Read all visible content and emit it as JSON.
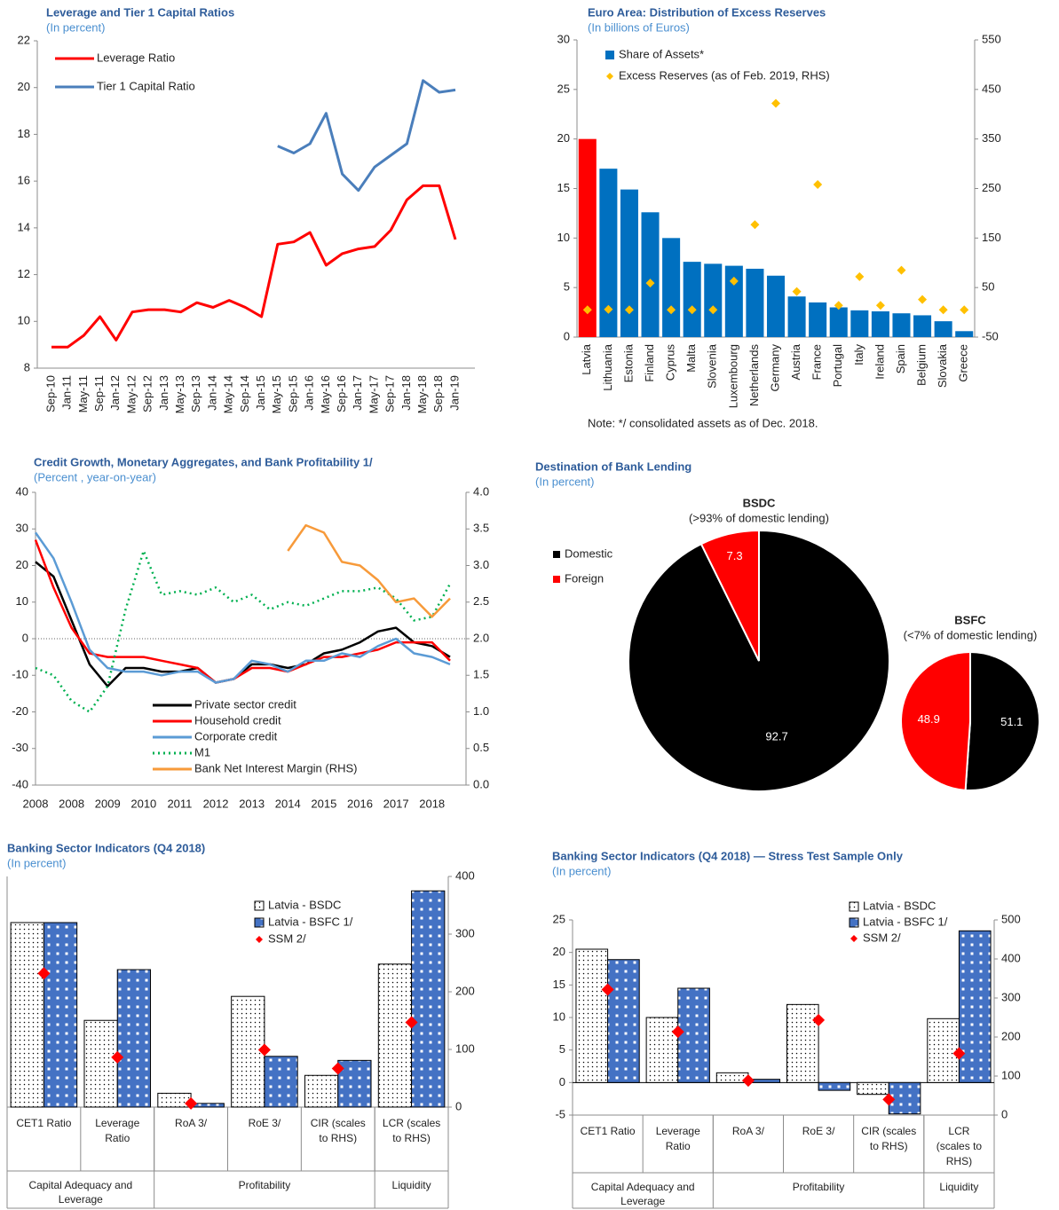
{
  "chart_data": [
    {
      "type": "line",
      "title": "Leverage and Tier 1 Capital Ratios",
      "subtitle": "(In percent)",
      "categories": [
        "Sep-10",
        "Jan-11",
        "May-11",
        "Sep-11",
        "Jan-12",
        "May-12",
        "Sep-12",
        "Jan-13",
        "May-13",
        "Sep-13",
        "Jan-14",
        "May-14",
        "Sep-14",
        "Jan-15",
        "May-15",
        "Sep-15",
        "Jan-16",
        "May-16",
        "Sep-16",
        "Jan-17",
        "May-17",
        "Sep-17",
        "Jan-18",
        "May-18",
        "Sep-18",
        "Jan-19"
      ],
      "series": [
        {
          "name": "Leverage Ratio",
          "color": "#ff0000",
          "values": [
            8.9,
            8.9,
            9.4,
            10.2,
            9.2,
            10.4,
            10.5,
            10.5,
            10.4,
            10.8,
            10.6,
            10.9,
            10.6,
            10.2,
            13.3,
            13.4,
            13.8,
            12.4,
            12.9,
            13.1,
            13.2,
            13.9,
            15.2,
            15.8,
            15.8,
            13.5
          ]
        },
        {
          "name": "Tier 1 Capital Ratio",
          "color": "#4a7ebb",
          "values": [
            null,
            null,
            null,
            null,
            null,
            null,
            null,
            null,
            null,
            null,
            null,
            null,
            null,
            null,
            17.5,
            17.2,
            17.6,
            18.9,
            16.3,
            15.6,
            16.6,
            17.1,
            17.6,
            20.3,
            19.8,
            19.9
          ]
        }
      ],
      "ylim": [
        8,
        22
      ],
      "yticks": [
        8,
        10,
        12,
        14,
        16,
        18,
        20,
        22
      ],
      "legend": "upper left"
    },
    {
      "type": "bar",
      "title": "Euro Area: Distribution of Excess Reserves",
      "subtitle": "(In billions of Euros)",
      "note": "Note: */ consolidated assets as of Dec. 2018.",
      "categories": [
        "Latvia",
        "Lithuania",
        "Estonia",
        "Finland",
        "Cyprus",
        "Malta",
        "Slovenia",
        "Luxembourg",
        "Netherlands",
        "Germany",
        "Austria",
        "France",
        "Portugal",
        "Italy",
        "Ireland",
        "Spain",
        "Belgium",
        "Slovakia",
        "Greece"
      ],
      "series": [
        {
          "name": "Share of Assets*",
          "color": "#0070c0",
          "colors": [
            "#ff0000",
            "#0070c0",
            "#0070c0",
            "#0070c0",
            "#0070c0",
            "#0070c0",
            "#0070c0",
            "#0070c0",
            "#0070c0",
            "#0070c0",
            "#0070c0",
            "#0070c0",
            "#0070c0",
            "#0070c0",
            "#0070c0",
            "#0070c0",
            "#0070c0",
            "#0070c0",
            "#0070c0"
          ],
          "values": [
            20,
            17,
            14.9,
            12.6,
            10,
            7.6,
            7.4,
            7.2,
            6.9,
            6.2,
            4.1,
            3.5,
            3.0,
            2.7,
            2.6,
            2.4,
            2.2,
            1.6,
            0.6
          ]
        },
        {
          "name": "Excess Reserves (as of Feb. 2019, RHS)",
          "type": "scatter",
          "axis": "y2",
          "color": "#ffc000",
          "values": [
            5,
            6,
            5,
            59,
            5,
            5,
            5,
            63,
            177,
            422,
            42,
            258,
            14,
            72,
            14,
            85,
            26,
            5,
            5
          ]
        }
      ],
      "ylim": [
        0,
        30
      ],
      "yticks": [
        0,
        5,
        10,
        15,
        20,
        25,
        30
      ],
      "y2lim": [
        -50,
        550
      ],
      "y2ticks": [
        -50,
        50,
        150,
        250,
        350,
        450,
        550
      ],
      "legend": "upper left"
    },
    {
      "type": "line",
      "title": "Credit Growth, Monetary Aggregates, and Bank Profitability 1/",
      "subtitle": "(Percent , year-on-year)",
      "categories": [
        "2008",
        null,
        "2008",
        null,
        "2009",
        null,
        "2010",
        null,
        "2011",
        null,
        "2012",
        null,
        "2013",
        null,
        "2014",
        null,
        "2015",
        null,
        "2016",
        null,
        "2017",
        null,
        "2018",
        null
      ],
      "series": [
        {
          "name": "Private sector credit",
          "color": "#000000",
          "values": [
            21,
            17,
            5,
            -7,
            -13,
            -8,
            -8,
            -9,
            -9,
            -8,
            -12,
            -11,
            -7,
            -7,
            -8,
            -7,
            -4,
            -3,
            -1,
            2,
            3,
            -1,
            -2,
            -5
          ]
        },
        {
          "name": "Household credit",
          "color": "#ff0000",
          "values": [
            27,
            14,
            3,
            -4,
            -5,
            -5,
            -5,
            -6,
            -7,
            -8,
            -12,
            -11,
            -8,
            -8,
            -9,
            -7,
            -5,
            -5,
            -4,
            -3,
            -1,
            -1,
            -1,
            -6
          ]
        },
        {
          "name": "Corporate credit",
          "color": "#5b9bd5",
          "values": [
            29,
            22,
            10,
            -3,
            -8,
            -9,
            -9,
            -10,
            -9,
            -9,
            -12,
            -11,
            -6,
            -7,
            -9,
            -6,
            -6,
            -4,
            -5,
            -2,
            0,
            -4,
            -5,
            -7
          ]
        },
        {
          "name": "M1",
          "color": "#00b050",
          "dash": "dotted",
          "values": [
            -8,
            -10,
            -17,
            -20,
            -13,
            8,
            24,
            12,
            13,
            12,
            14,
            10,
            12,
            8,
            10,
            9,
            11,
            13,
            13,
            14,
            11,
            5,
            6,
            15
          ]
        },
        {
          "name": "Bank Net Interest Margin (RHS)",
          "color": "#f79a3a",
          "axis": "y2",
          "values": [
            null,
            null,
            null,
            null,
            null,
            null,
            null,
            null,
            null,
            null,
            null,
            null,
            null,
            null,
            3.2,
            3.55,
            3.45,
            3.05,
            3.0,
            2.8,
            2.5,
            2.55,
            2.3,
            2.55
          ]
        }
      ],
      "ylim": [
        -40,
        40
      ],
      "yticks": [
        -40,
        -30,
        -20,
        -10,
        0,
        10,
        20,
        30,
        40
      ],
      "y2lim": [
        0,
        4
      ],
      "y2ticks": [
        {
          "value": 0,
          "label": "0.0"
        },
        0.5,
        {
          "value": 1,
          "label": "1.0"
        },
        1.5,
        {
          "value": 2,
          "label": "2.0"
        },
        2.5,
        {
          "value": 3,
          "label": "3.0"
        },
        3.5,
        {
          "value": 4,
          "label": "4.0"
        }
      ],
      "legend": "lower center"
    },
    {
      "type": "pie",
      "title": "Destination of Bank Lending",
      "subtitle": "(In percent)",
      "categories": [
        "Domestic",
        "Foreign"
      ],
      "colors": [
        "#000000",
        "#ff0000"
      ],
      "pies": [
        {
          "title": "BSDC",
          "subtitle": "(>93% of domestic lending)",
          "values": [
            92.7,
            7.3
          ]
        },
        {
          "title": "BSFC",
          "subtitle": "(<7% of domestic lending)",
          "values": [
            51.1,
            48.9
          ]
        }
      ],
      "legend": "left"
    },
    {
      "type": "bar",
      "title": "Banking Sector Indicators (Q4 2018)",
      "subtitle": "(In percent)",
      "groups": [
        {
          "name": "Capital Adequacy and Leverage",
          "categories": [
            "CET1 Ratio",
            "Leverage Ratio"
          ]
        },
        {
          "name": "Profitability",
          "categories": [
            "RoA 3/",
            "RoE 3/",
            "CIR (scales to RHS)"
          ]
        },
        {
          "name": "Liquidity",
          "categories": [
            "LCR (scales to RHS)"
          ]
        }
      ],
      "value_axes": [
        "y",
        "y",
        "y",
        "y",
        "y2",
        "y2"
      ],
      "series": [
        {
          "name": "Latvia - BSDC",
          "color": "#000000",
          "pattern": "dots",
          "values": [
            20,
            9.4,
            1.5,
            12,
            55,
            248
          ]
        },
        {
          "name": "Latvia - BSFC 1/",
          "color": "#4472c4",
          "pattern": "squares",
          "values": [
            20,
            14.9,
            0.4,
            5.5,
            81,
            375
          ]
        },
        {
          "name": "SSM 2/",
          "type": "scatter",
          "color": "#ff0000",
          "values": [
            14.5,
            5.4,
            0.4,
            6.2,
            67,
            147
          ]
        }
      ],
      "ylim": [
        0,
        25
      ],
      "y2lim": [
        0,
        400
      ],
      "y2ticks": [
        0,
        100,
        200,
        300,
        400
      ],
      "legend": "upper right"
    },
    {
      "type": "bar",
      "title": "Banking Sector Indicators (Q4 2018) — Stress Test Sample Only",
      "subtitle": "(In percent)",
      "groups": [
        {
          "name": "Capital Adequacy and Leverage",
          "categories": [
            "CET1 Ratio",
            "Leverage Ratio"
          ]
        },
        {
          "name": "Profitability",
          "categories": [
            "RoA 3/",
            "RoE 3/",
            "CIR (scales to RHS)"
          ]
        },
        {
          "name": "Liquidity",
          "categories": [
            "LCR (scales to RHS)"
          ]
        }
      ],
      "value_axes": [
        "y",
        "y",
        "y",
        "y",
        "y2",
        "y2"
      ],
      "series": [
        {
          "name": "Latvia - BSDC",
          "color": "#000000",
          "pattern": "dots",
          "values": [
            20.5,
            10,
            1.5,
            12,
            53,
            247
          ]
        },
        {
          "name": "Latvia - BSFC 1/",
          "color": "#4472c4",
          "pattern": "squares",
          "values": [
            18.9,
            14.5,
            0.5,
            -1.2,
            3,
            472
          ]
        },
        {
          "name": "SSM 2/",
          "type": "scatter",
          "color": "#ff0000",
          "values": [
            14.3,
            7.8,
            0.3,
            9.6,
            40,
            158
          ]
        }
      ],
      "ylim": [
        -5,
        25
      ],
      "yticks": [
        -5,
        0,
        5,
        10,
        15,
        20,
        25
      ],
      "y2lim": [
        0,
        500
      ],
      "y2ticks": [
        0,
        100,
        200,
        300,
        400,
        500
      ],
      "legend": "upper right"
    }
  ]
}
